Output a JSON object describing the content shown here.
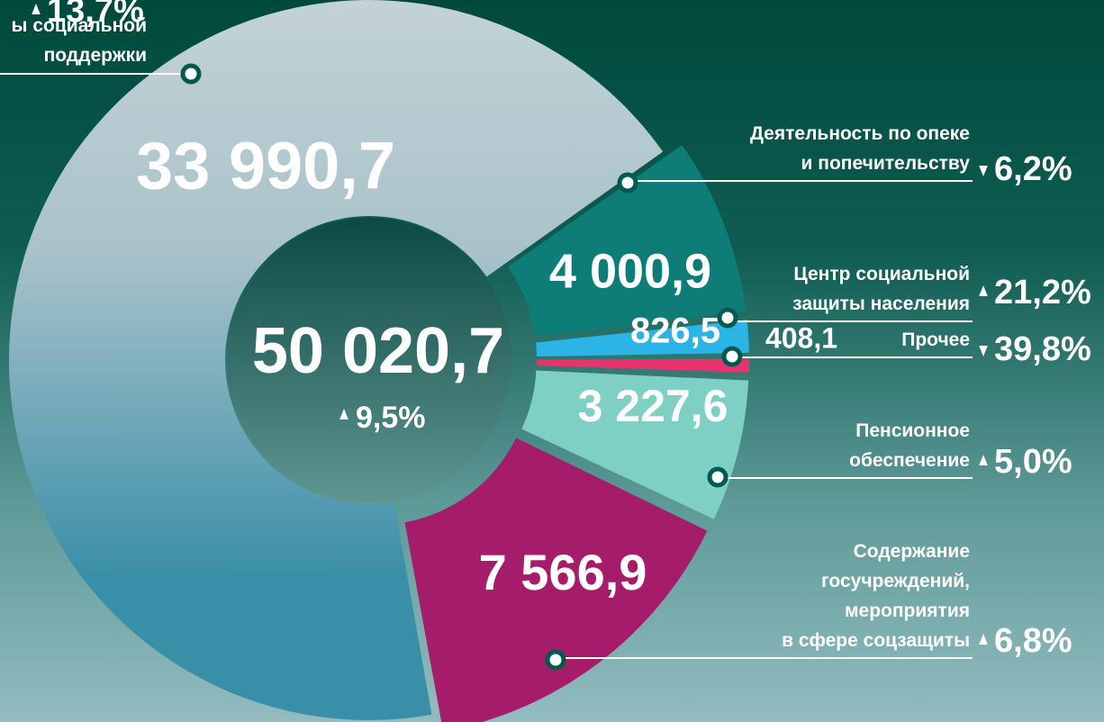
{
  "chart_data": {
    "type": "pie",
    "categories": [
      "ы социальной\nподдержки",
      "Деятельность по опеке\nи попечительству",
      "Центр социальной\nзащиты населения",
      "Прочее",
      "Пенсионное\nобеспечение",
      "Содержание\nгосучреждений,\nмероприятия\nв сфере соцзащиты"
    ],
    "values": [
      33990.7,
      4000.9,
      826.5,
      408.1,
      3227.6,
      7566.9
    ],
    "value_labels": [
      "33 990,7",
      "4 000,9",
      "826,5",
      "408,1",
      "3 227,6",
      "7 566,9"
    ],
    "colors": [
      "#3a8fa8",
      "#0e7d78",
      "#2bb5e6",
      "#e8336f",
      "#7ecfc4",
      "#a51c6a"
    ],
    "changes": [
      "13,7%",
      "6,2%",
      "21,2%",
      "39,8%",
      "5,0%",
      "6,8%"
    ],
    "change_directions": [
      "up",
      "down",
      "up",
      "down",
      "up",
      "up"
    ],
    "total_label": "50 020,7",
    "total_change": "9,5%",
    "total_change_direction": "up"
  }
}
